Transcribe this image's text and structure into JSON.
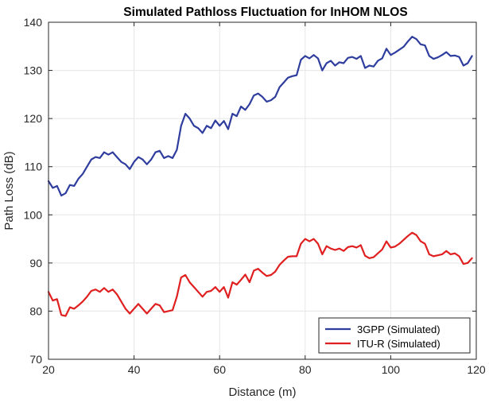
{
  "chart_data": {
    "type": "line",
    "title": "Simulated Pathloss Fluctuation for InHOM NLOS",
    "xlabel": "Distance (m)",
    "ylabel": "Path Loss (dB)",
    "xlim": [
      20,
      120
    ],
    "ylim": [
      70,
      140
    ],
    "xticks": [
      20,
      40,
      60,
      80,
      100,
      120
    ],
    "yticks": [
      70,
      80,
      90,
      100,
      110,
      120,
      130,
      140
    ],
    "grid": true,
    "legend_position": "bottom-right",
    "series": [
      {
        "name": "3GPP (Simulated)",
        "color": "#2F3E9E",
        "x": [
          20,
          21,
          22,
          23,
          24,
          25,
          26,
          27,
          28,
          29,
          30,
          31,
          32,
          33,
          34,
          35,
          36,
          37,
          38,
          39,
          40,
          41,
          42,
          43,
          44,
          45,
          46,
          47,
          48,
          49,
          50,
          51,
          52,
          53,
          54,
          55,
          56,
          57,
          58,
          59,
          60,
          61,
          62,
          63,
          64,
          65,
          66,
          67,
          68,
          69,
          70,
          71,
          72,
          73,
          74,
          75,
          76,
          77,
          78,
          79,
          80,
          81,
          82,
          83,
          84,
          85,
          86,
          87,
          88,
          89,
          90,
          91,
          92,
          93,
          94,
          95,
          96,
          97,
          98,
          99,
          100,
          101,
          102,
          103,
          104,
          105,
          106,
          107,
          108,
          109,
          110,
          111,
          112,
          113,
          114,
          115,
          116,
          117,
          118,
          119
        ],
        "y": [
          107,
          105.6,
          106,
          104,
          104.5,
          106.2,
          106,
          107.5,
          108.5,
          110,
          111.5,
          112,
          111.8,
          113,
          112.5,
          113,
          112,
          111,
          110.5,
          109.5,
          111,
          112,
          111.5,
          110.5,
          111.5,
          113,
          113.3,
          111.8,
          112.2,
          111.8,
          113.5,
          118.5,
          121,
          120,
          118.5,
          118,
          117,
          118.5,
          118,
          119.6,
          118.5,
          119.5,
          117.8,
          121,
          120.5,
          122.5,
          121.8,
          123,
          124.8,
          125.2,
          124.5,
          123.5,
          123.8,
          124.5,
          126.5,
          127.5,
          128.5,
          128.8,
          129,
          132.2,
          133,
          132.5,
          133.2,
          132.5,
          130,
          131.5,
          132,
          131,
          131.7,
          131.5,
          132.6,
          132.8,
          132.4,
          133,
          130.5,
          131,
          130.8,
          132,
          132.5,
          134.5,
          133.2,
          133.7,
          134.3,
          134.9,
          136,
          137,
          136.5,
          135.4,
          135.2,
          133,
          132.4,
          132.7,
          133.2,
          133.8,
          133,
          133.1,
          132.8,
          131,
          131.5,
          133
        ]
      },
      {
        "name": "ITU-R (Simulated)",
        "color": "#E02020",
        "x": [
          20,
          21,
          22,
          23,
          24,
          25,
          26,
          27,
          28,
          29,
          30,
          31,
          32,
          33,
          34,
          35,
          36,
          37,
          38,
          39,
          40,
          41,
          42,
          43,
          44,
          45,
          46,
          47,
          48,
          49,
          50,
          51,
          52,
          53,
          54,
          55,
          56,
          57,
          58,
          59,
          60,
          61,
          62,
          63,
          64,
          65,
          66,
          67,
          68,
          69,
          70,
          71,
          72,
          73,
          74,
          75,
          76,
          77,
          78,
          79,
          80,
          81,
          82,
          83,
          84,
          85,
          86,
          87,
          88,
          89,
          90,
          91,
          92,
          93,
          94,
          95,
          96,
          97,
          98,
          99,
          100,
          101,
          102,
          103,
          104,
          105,
          106,
          107,
          108,
          109,
          110,
          111,
          112,
          113,
          114,
          115,
          116,
          117,
          118,
          119
        ],
        "y": [
          84,
          82.2,
          82.5,
          79.2,
          79,
          80.8,
          80.5,
          81.2,
          82,
          83,
          84.2,
          84.5,
          84,
          84.8,
          84,
          84.5,
          83.5,
          82,
          80.5,
          79.5,
          80.5,
          81.5,
          80.5,
          79.5,
          80.5,
          81.5,
          81.2,
          79.8,
          80,
          80.2,
          83,
          87,
          87.5,
          86,
          85,
          84,
          83,
          84,
          84.2,
          85,
          84,
          85,
          82.8,
          86,
          85.5,
          86.5,
          87.6,
          86,
          88.4,
          88.8,
          88,
          87.3,
          87.5,
          88.2,
          89.6,
          90.5,
          91.3,
          91.4,
          91.4,
          94,
          95,
          94.5,
          95,
          94,
          91.8,
          93.5,
          93,
          92.7,
          93,
          92.5,
          93.3,
          93.5,
          93.2,
          93.7,
          91.5,
          91,
          91.2,
          92,
          92.8,
          94.5,
          93.2,
          93.4,
          94,
          94.8,
          95.6,
          96.3,
          95.8,
          94.5,
          94,
          91.8,
          91.4,
          91.6,
          91.8,
          92.5,
          91.8,
          92,
          91.4,
          89.8,
          90,
          91
        ]
      }
    ]
  }
}
